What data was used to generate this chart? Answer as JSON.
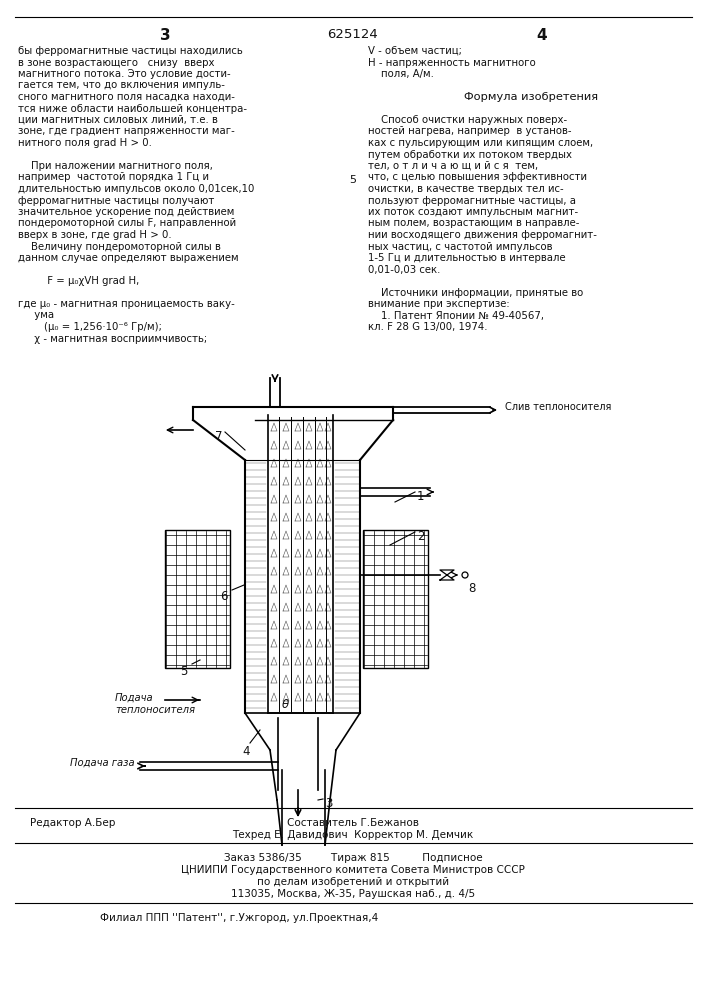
{
  "bg_color": "#ffffff",
  "page_width": 7.07,
  "page_height": 10.0,
  "header_page_left": "3",
  "header_patent": "625124",
  "header_page_right": "4",
  "left_col_lines": [
    "бы ферромагнитные частицы находились",
    "в зоне возрастающего   снизу  вверх",
    "магнитного потока. Это условие дости-",
    "гается тем, что до включения импуль-",
    "сного магнитного поля насадка находи-",
    "тся ниже области наибольшей концентра-",
    "ции магнитных силовых линий, т.е. в",
    "зоне, где градиент напряженности маг-",
    "нитного поля grad H > 0.",
    " ",
    "    При наложении магнитного поля,",
    "например  частотой порядка 1 Гц и",
    "длительностью импульсов около 0,01сек,10",
    "ферромагнитные частицы получают",
    "значительное ускорение под действием",
    "пондеромоторной силы F, направленной",
    "вверх в зоне, где grad H > 0.",
    "    Величину пондеромоторной силы в",
    "данном случае определяют выражением",
    " ",
    "         F = μ₀χVH grad H,",
    " ",
    "где μ₀ - магнитная проницаемость ваку-",
    "     ума",
    "        (μ₀ = 1,256·10⁻⁶ Гр/м);",
    "     χ - магнитная восприимчивость;"
  ],
  "right_col_lines": [
    "V - объем частиц;",
    "H - напряженность магнитного",
    "    поля, А/м.",
    " ",
    "Формула изобретения",
    " ",
    "    Способ очистки наружных поверх-",
    "ностей нагрева, например  в установ-",
    "ках с пульсирующим или кипящим слоем,",
    "путем обработки их потоком твердых",
    "тел, о т л и ч а ю щ и й с я  тем,",
    "что, с целью повышения эффективности",
    "очистки, в качестве твердых тел ис-",
    "пользуют ферромагнитные частицы, а",
    "их поток создают импульсным магнит-",
    "ным полем, возрастающим в направле-",
    "нии восходящего движения ферромагнит-",
    "ных частиц, с частотой импульсов",
    "1-5 Гц и длительностью в интервале",
    "0,01-0,03 сек.",
    " ",
    "    Источники информации, принятые во",
    "внимание при экспертизе:",
    "    1. Патент Японии № 49-40567,",
    "кл. F 28 G 13/00, 1974."
  ],
  "editor_line": "Редактор А.Бер",
  "composer_label": "Составитель Г.Бежанов",
  "techred_label": "Техред Е. Давидович  Корректор М. Демчик",
  "order_label": "Заказ 5386/35         Тираж 815          Подписное",
  "cniip_label": "ЦНИИПИ Государственного комитета Совета Министров СССР",
  "purpose_label": "по делам изобретений и открытий",
  "address_label": "113035, Москва, Ж-35, Раушская наб., д. 4/5",
  "branch_label": "Филиал ППП ''Патент'', г.Ужгород, ул.Проектная,4",
  "sliv_label": "Слив теплоносителя",
  "podacha_teplo_label": "Подача\nтеплоносителя",
  "podacha_gaza_label": "Подача газа"
}
